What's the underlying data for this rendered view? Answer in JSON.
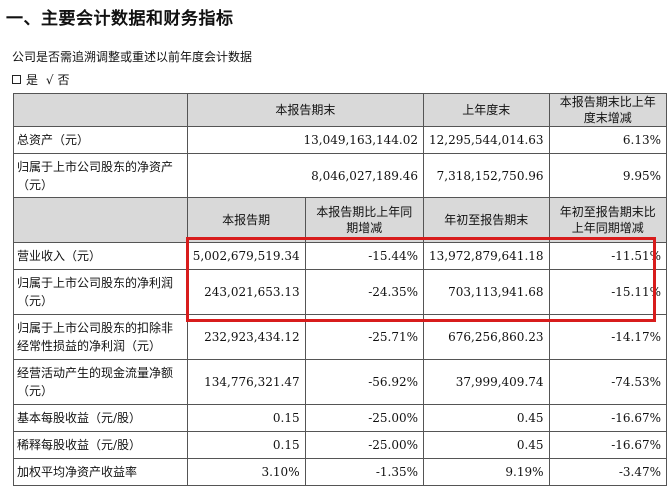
{
  "section_title": "一、主要会计数据和财务指标",
  "restatement_note": "公司是否需追溯调整或重述以前年度会计数据",
  "choice": {
    "yes": "是",
    "check_mark": "√",
    "no": "否"
  },
  "table1": {
    "headers": [
      "",
      "本报告期末",
      "上年度末",
      "本报告期末比上年度末增减"
    ],
    "rows": [
      {
        "label": "总资产（元）",
        "values": [
          "13,049,163,144.02",
          "12,295,544,014.63",
          "6.13%"
        ]
      },
      {
        "label": "归属于上市公司股东的净资产（元）",
        "values": [
          "8,046,027,189.46",
          "7,318,152,750.96",
          "9.95%"
        ]
      }
    ]
  },
  "table2": {
    "headers": [
      "",
      "本报告期",
      "本报告期比上年同期增减",
      "年初至报告期末",
      "年初至报告期末比上年同期增减"
    ],
    "rows": [
      {
        "label": "营业收入（元）",
        "values": [
          "5,002,679,519.34",
          "-15.44%",
          "13,972,879,641.18",
          "-11.51%"
        ]
      },
      {
        "label": "归属于上市公司股东的净利润（元）",
        "values": [
          "243,021,653.13",
          "-24.35%",
          "703,113,941.68",
          "-15.11%"
        ]
      },
      {
        "label": "归属于上市公司股东的扣除非经常性损益的净利润（元）",
        "values": [
          "232,923,434.12",
          "-25.71%",
          "676,256,860.23",
          "-14.17%"
        ]
      },
      {
        "label": "经营活动产生的现金流量净额（元）",
        "values": [
          "134,776,321.47",
          "-56.92%",
          "37,999,409.74",
          "-74.53%"
        ]
      },
      {
        "label": "基本每股收益（元/股）",
        "values": [
          "0.15",
          "-25.00%",
          "0.45",
          "-16.67%"
        ]
      },
      {
        "label": "稀释每股收益（元/股）",
        "values": [
          "0.15",
          "-25.00%",
          "0.45",
          "-16.67%"
        ]
      },
      {
        "label": "加权平均净资产收益率",
        "values": [
          "3.10%",
          "-1.35%",
          "9.19%",
          "-3.47%"
        ]
      }
    ]
  },
  "highlight_color": "#d81c1c"
}
